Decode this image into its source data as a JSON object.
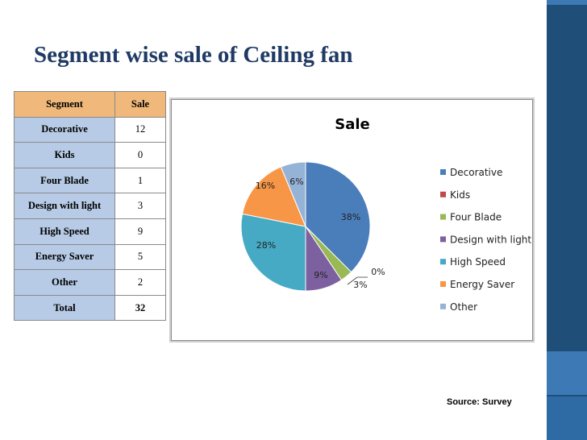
{
  "slide": {
    "title": "Segment wise sale of Ceiling fan",
    "source": "Source: Survey"
  },
  "table": {
    "header": [
      "Segment",
      "Sale"
    ],
    "rows": [
      [
        "Decorative",
        "12"
      ],
      [
        "Kids",
        "0"
      ],
      [
        "Four Blade",
        "1"
      ],
      [
        "Design with light",
        "3"
      ],
      [
        "High Speed",
        "9"
      ],
      [
        "Energy Saver",
        "5"
      ],
      [
        "Other",
        "2"
      ]
    ],
    "total": [
      "Total",
      "32"
    ]
  },
  "chart_data": {
    "type": "pie",
    "title": "Sale",
    "categories": [
      "Decorative",
      "Kids",
      "Four Blade",
      "Design with light",
      "High Speed",
      "Energy Saver",
      "Other"
    ],
    "values": [
      12,
      0,
      1,
      3,
      9,
      5,
      2
    ],
    "data_labels": [
      "38%",
      "0%",
      "3%",
      "9%",
      "28%",
      "16%",
      "6%"
    ],
    "colors": [
      "#4a7ebb",
      "#be4b48",
      "#98b954",
      "#7d60a0",
      "#46aac4",
      "#f79646",
      "#95b3d7"
    ],
    "legend": "right"
  },
  "colors": {
    "title": "#1f3a64",
    "side_band": "#1f4e79",
    "table_header": "#f0b87a",
    "table_label_cells": "#b7cbe6"
  }
}
